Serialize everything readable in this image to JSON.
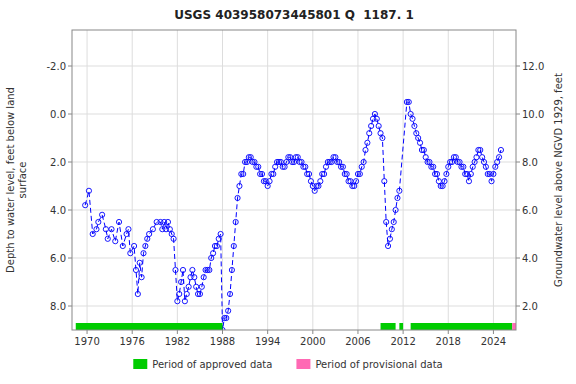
{
  "chart_data": {
    "type": "line",
    "title": "USGS 403958073445801 Q  1187. 1",
    "ylabel": "Depth to water level, feet below land\nsurface",
    "y2label": "Groundwater level above NGVD 1929, feet",
    "xlim": [
      1968,
      2027
    ],
    "ylim": [
      9.0,
      -3.5
    ],
    "y2lim": [
      1.0,
      13.5
    ],
    "xticks": [
      1970,
      1976,
      1982,
      1988,
      1994,
      2000,
      2006,
      2012,
      2018,
      2024
    ],
    "yticks": [
      {
        "value": -2.0,
        "label": "-2.0"
      },
      {
        "value": 0.0,
        "label": "0.0"
      },
      {
        "value": 2.0,
        "label": "2.0"
      },
      {
        "value": 4.0,
        "label": "4.0"
      },
      {
        "value": 6.0,
        "label": "6.0"
      },
      {
        "value": 8.0,
        "label": "8.0"
      }
    ],
    "y2ticks": [
      {
        "value": 2.0,
        "label": "2.0"
      },
      {
        "value": 4.0,
        "label": "4.0"
      },
      {
        "value": 6.0,
        "label": "6.0"
      },
      {
        "value": 8.0,
        "label": "8.0"
      },
      {
        "value": 10.0,
        "label": "10.0"
      },
      {
        "value": 12.0,
        "label": "12.0"
      }
    ],
    "grid": true,
    "color": "blue",
    "marker": "circle",
    "line_style": "dashed",
    "periods": [
      {
        "name": "Period of approved data",
        "color": "#00cc00",
        "segments": [
          [
            1968.5,
            1988.0
          ],
          [
            2009.0,
            2011.0
          ],
          [
            2011.5,
            2012.0
          ],
          [
            2013.0,
            2026.5
          ]
        ]
      },
      {
        "name": "Period of provisional data",
        "color": "#ff69b4",
        "segments": [
          [
            2026.5,
            2027.0
          ]
        ]
      }
    ],
    "x": [
      1969.75,
      1970.25,
      1970.75,
      1971.25,
      1971.5,
      1972.0,
      1972.5,
      1972.75,
      1973.25,
      1973.75,
      1974.25,
      1974.75,
      1975.25,
      1975.5,
      1975.75,
      1976.25,
      1976.5,
      1976.75,
      1977.0,
      1977.25,
      1977.5,
      1977.75,
      1978.0,
      1978.25,
      1978.75,
      1979.25,
      1979.75,
      1980.0,
      1980.25,
      1980.5,
      1980.75,
      1981.0,
      1981.25,
      1981.5,
      1981.75,
      1982.0,
      1982.25,
      1982.5,
      1982.75,
      1983.0,
      1983.25,
      1983.5,
      1983.75,
      1984.0,
      1984.25,
      1984.5,
      1984.75,
      1985.0,
      1985.25,
      1985.5,
      1985.75,
      1986.0,
      1986.25,
      1986.5,
      1986.75,
      1987.0,
      1987.25,
      1987.5,
      1987.75,
      1988.0,
      1988.25,
      1988.5,
      1988.75,
      1989.0,
      1989.25,
      1989.5,
      1989.75,
      1990.0,
      1990.25,
      1990.5,
      1990.75,
      1991.0,
      1991.25,
      1991.5,
      1991.75,
      1992.0,
      1992.25,
      1992.5,
      1992.75,
      1993.0,
      1993.25,
      1993.5,
      1993.75,
      1994.0,
      1994.25,
      1994.5,
      1994.75,
      1995.0,
      1995.25,
      1995.5,
      1995.75,
      1996.0,
      1996.25,
      1996.5,
      1996.75,
      1997.0,
      1997.25,
      1997.5,
      1997.75,
      1998.0,
      1998.25,
      1998.5,
      1998.75,
      1999.0,
      1999.25,
      1999.5,
      1999.75,
      2000.0,
      2000.25,
      2000.5,
      2000.75,
      2001.0,
      2001.25,
      2001.5,
      2001.75,
      2002.0,
      2002.25,
      2002.5,
      2002.75,
      2003.0,
      2003.25,
      2003.5,
      2003.75,
      2004.0,
      2004.25,
      2004.5,
      2004.75,
      2005.0,
      2005.25,
      2005.5,
      2005.75,
      2006.0,
      2006.25,
      2006.5,
      2006.75,
      2007.0,
      2007.25,
      2007.5,
      2007.75,
      2008.0,
      2008.25,
      2008.5,
      2008.75,
      2009.0,
      2009.25,
      2009.5,
      2009.75,
      2010.0,
      2010.25,
      2010.5,
      2010.75,
      2011.0,
      2011.25,
      2011.5,
      2012.5,
      2012.75,
      2013.0,
      2013.25,
      2013.5,
      2013.75,
      2014.0,
      2014.25,
      2014.5,
      2014.75,
      2015.0,
      2015.25,
      2015.5,
      2015.75,
      2016.0,
      2016.25,
      2016.5,
      2016.75,
      2017.0,
      2017.25,
      2017.5,
      2017.75,
      2018.0,
      2018.25,
      2018.5,
      2018.75,
      2019.0,
      2019.25,
      2019.5,
      2019.75,
      2020.0,
      2020.25,
      2020.5,
      2020.75,
      2021.0,
      2021.25,
      2021.5,
      2021.75,
      2022.0,
      2022.25,
      2022.5,
      2022.75,
      2023.0,
      2023.25,
      2023.5,
      2023.75,
      2024.0,
      2024.25,
      2024.5,
      2024.75,
      2025.0
    ],
    "values": [
      3.8,
      3.2,
      5.0,
      4.8,
      4.5,
      4.2,
      4.8,
      5.2,
      4.8,
      5.3,
      4.5,
      5.5,
      5.0,
      4.8,
      5.8,
      5.5,
      6.5,
      7.5,
      6.2,
      6.8,
      5.8,
      5.5,
      5.2,
      5.0,
      4.8,
      4.5,
      4.5,
      4.8,
      4.5,
      4.8,
      4.5,
      4.8,
      5.0,
      5.2,
      6.5,
      7.8,
      7.5,
      7.0,
      6.5,
      7.8,
      7.5,
      7.2,
      6.8,
      6.5,
      6.8,
      7.2,
      7.5,
      7.5,
      7.2,
      6.8,
      6.5,
      6.5,
      6.5,
      6.0,
      5.8,
      5.5,
      5.5,
      5.2,
      5.0,
      9.0,
      8.5,
      8.5,
      8.2,
      7.5,
      6.5,
      5.5,
      4.5,
      3.5,
      3.0,
      2.5,
      2.5,
      2.0,
      2.0,
      1.8,
      1.8,
      2.0,
      2.0,
      2.2,
      2.2,
      2.5,
      2.5,
      2.8,
      2.8,
      3.0,
      2.8,
      2.5,
      2.5,
      2.2,
      2.0,
      2.0,
      2.0,
      2.2,
      2.2,
      2.0,
      1.8,
      1.8,
      2.0,
      2.0,
      1.8,
      1.8,
      2.0,
      2.0,
      2.2,
      2.2,
      2.5,
      2.5,
      2.8,
      3.0,
      3.2,
      3.0,
      3.0,
      2.8,
      2.5,
      2.5,
      2.2,
      2.0,
      2.0,
      2.0,
      1.8,
      1.8,
      2.0,
      2.0,
      2.2,
      2.2,
      2.5,
      2.5,
      2.8,
      2.8,
      3.0,
      3.0,
      2.8,
      2.5,
      2.5,
      2.2,
      2.0,
      1.5,
      1.2,
      0.8,
      0.5,
      0.2,
      0.0,
      0.2,
      0.5,
      0.8,
      1.0,
      2.8,
      4.5,
      5.5,
      5.2,
      4.8,
      4.5,
      4.0,
      3.5,
      3.2,
      -0.5,
      -0.5,
      0.0,
      0.2,
      0.5,
      0.8,
      1.0,
      1.2,
      1.5,
      1.5,
      1.8,
      2.0,
      2.0,
      2.2,
      2.2,
      2.5,
      2.5,
      2.8,
      3.0,
      3.0,
      2.8,
      2.5,
      2.2,
      2.0,
      2.0,
      1.8,
      1.8,
      2.0,
      2.0,
      2.2,
      2.2,
      2.5,
      2.5,
      2.8,
      2.5,
      2.2,
      2.0,
      1.8,
      1.5,
      1.5,
      1.8,
      2.0,
      2.2,
      2.5,
      2.5,
      2.8,
      2.5,
      2.2,
      2.0,
      1.8,
      1.5
    ]
  }
}
